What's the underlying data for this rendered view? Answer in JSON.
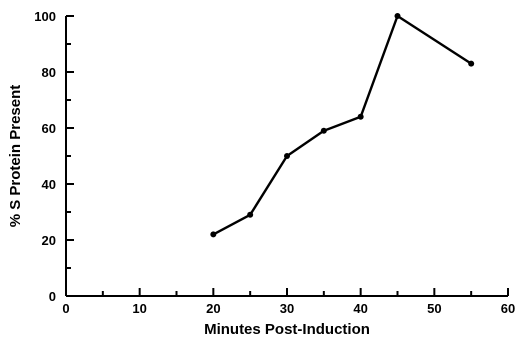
{
  "chart_data": {
    "type": "line",
    "title": "",
    "xlabel": "Minutes  Post-Induction",
    "ylabel": "% S Protein Present",
    "xlim": [
      0,
      60
    ],
    "ylim": [
      0,
      100
    ],
    "x_ticks": [
      0,
      10,
      20,
      30,
      40,
      50,
      60
    ],
    "y_ticks": [
      0,
      20,
      40,
      60,
      80,
      100
    ],
    "grid": false,
    "series": [
      {
        "x": [
          20,
          25,
          30,
          35,
          40,
          45,
          55
        ],
        "y": [
          22,
          29,
          50,
          59,
          64,
          100,
          83
        ]
      }
    ],
    "colors": {
      "line": "#000000"
    }
  }
}
